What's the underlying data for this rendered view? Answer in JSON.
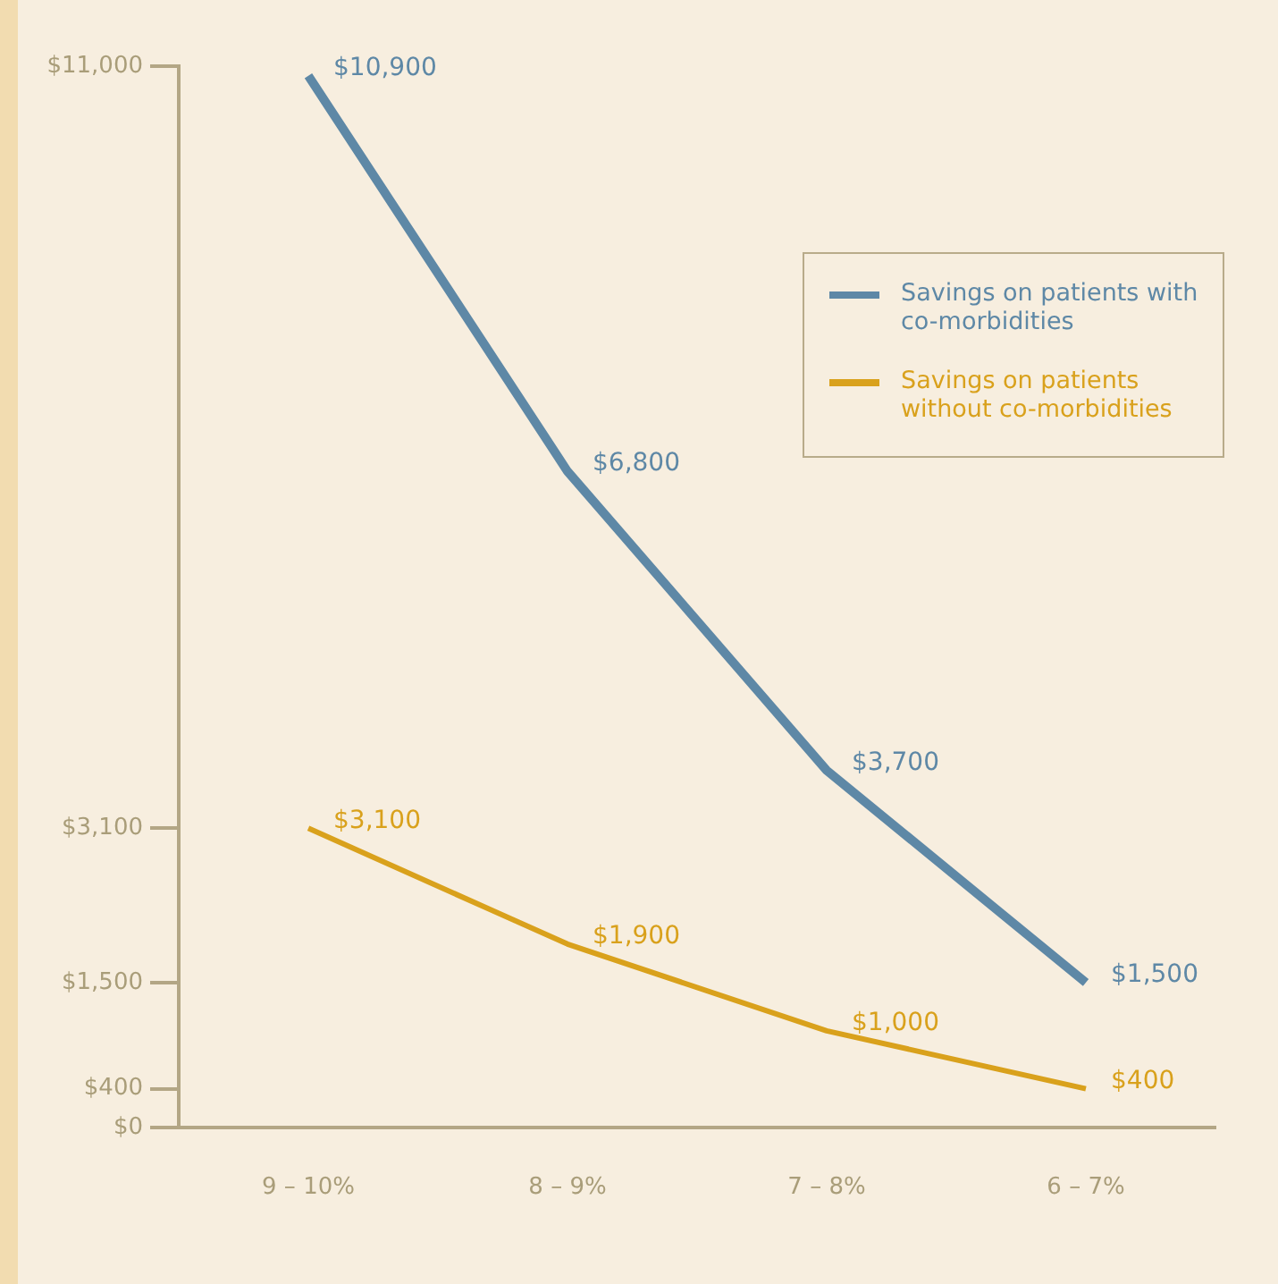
{
  "chart_data": {
    "type": "line",
    "categories": [
      "9 – 10%",
      "8 – 9%",
      "7 – 8%",
      "6 – 7%"
    ],
    "series": [
      {
        "name": "Savings on patients with co-morbidities",
        "color": "#5e88a6",
        "values": [
          10900,
          6800,
          3700,
          1500
        ],
        "value_labels": [
          "$10,900",
          "$6,800",
          "$3,700",
          "$1,500"
        ]
      },
      {
        "name": "Savings on patients without co-morbidities",
        "color": "#d9a11c",
        "values": [
          3100,
          1900,
          1000,
          400
        ],
        "value_labels": [
          "$3,100",
          "$1,900",
          "$1,000",
          "$400"
        ]
      }
    ],
    "ylim": [
      0,
      11000
    ],
    "yticks": [
      {
        "value": 0,
        "label": "$0"
      },
      {
        "value": 400,
        "label": "$400"
      },
      {
        "value": 1500,
        "label": "$1,500"
      },
      {
        "value": 3100,
        "label": "$3,100"
      },
      {
        "value": 11000,
        "label": "$11,000"
      }
    ],
    "grid": false,
    "legend": "top right",
    "marker": "none",
    "line_style": "solid"
  }
}
